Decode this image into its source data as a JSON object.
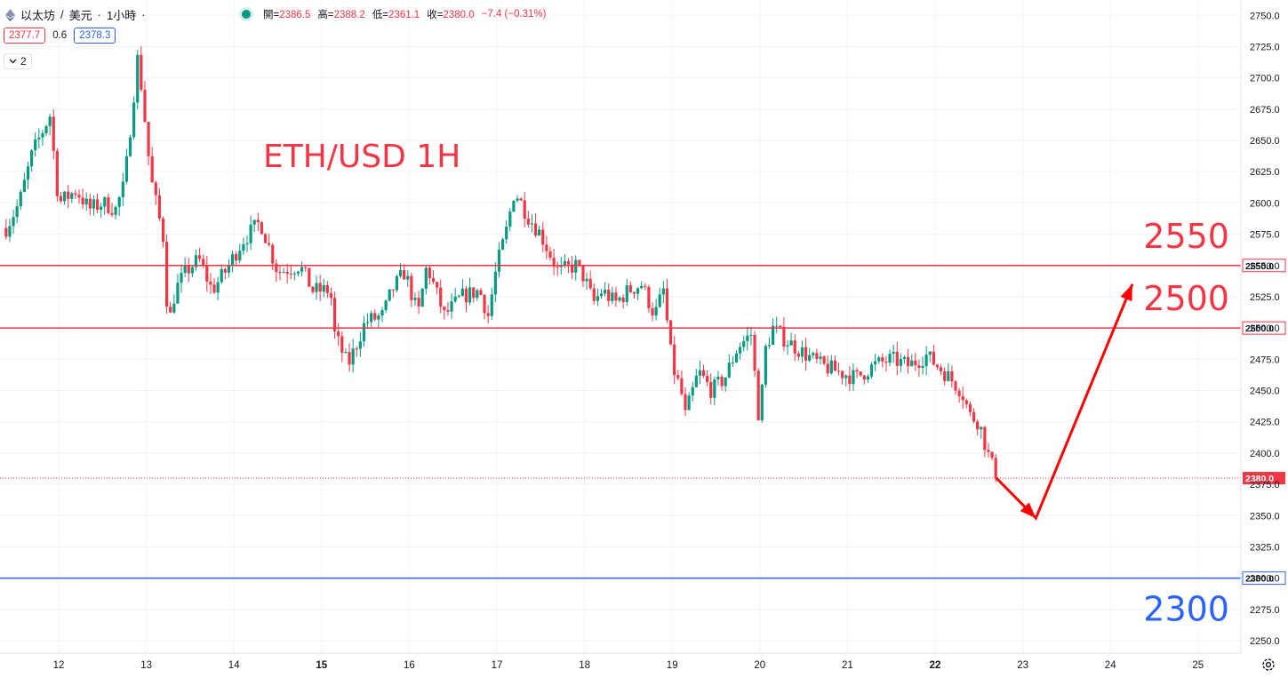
{
  "header": {
    "symbol": "以太坊",
    "separator": "/",
    "quote": "美元",
    "interval": "1小時",
    "dot": "·"
  },
  "ohlc": {
    "open_label": "開=",
    "open": "2386.5",
    "high_label": "高=",
    "high": "2388.2",
    "low_label": "低=",
    "low": "2361.1",
    "close_label": "收=",
    "close": "2380.0",
    "change": "−7.4 (−0.31%)"
  },
  "quote_boxes": {
    "sell": "2377.7",
    "spread": "0.6",
    "buy": "2378.3"
  },
  "indicators_toggle": {
    "count": "2"
  },
  "colors": {
    "up": "#089981",
    "down": "#f23645",
    "grid": "#f0f3fa",
    "resistance": "#f23645",
    "support": "#2962ff",
    "arrow": "#ff0000"
  },
  "chart_data": {
    "type": "candlestick",
    "title": "ETH/USD 1H",
    "x_axis": {
      "ticks": [
        "12",
        "13",
        "14",
        "15",
        "16",
        "17",
        "18",
        "19",
        "20",
        "21",
        "22",
        "23",
        "24",
        "25"
      ],
      "bold": [
        "15",
        "22"
      ]
    },
    "y_axis": {
      "range": [
        2243,
        2760
      ],
      "ticks": [
        "2750.0",
        "2725.0",
        "2700.0",
        "2675.0",
        "2650.0",
        "2625.0",
        "2600.0",
        "2575.0",
        "2550.0",
        "2525.0",
        "2500.0",
        "2475.0",
        "2450.0",
        "2425.0",
        "2400.0",
        "2375.0",
        "2350.0",
        "2325.0",
        "2300.0",
        "2275.0",
        "2250.0"
      ]
    },
    "grid": true,
    "current_price": "2380.0",
    "levels": [
      {
        "value": 2550,
        "label": "2550",
        "tag": "2550.0",
        "kind": "resistance"
      },
      {
        "value": 2500,
        "label": "2500",
        "tag": "2500.0",
        "kind": "resistance"
      },
      {
        "value": 2300,
        "label": "2300",
        "tag": "2300.0",
        "kind": "support"
      }
    ],
    "projection": [
      {
        "day": 22.7,
        "price": 2380
      },
      {
        "day": 23.15,
        "price": 2348
      },
      {
        "day": 24.25,
        "price": 2535
      }
    ],
    "anchors": [
      [
        11.4,
        2580
      ],
      [
        11.55,
        2600
      ],
      [
        11.7,
        2640
      ],
      [
        11.9,
        2670
      ],
      [
        12.0,
        2600
      ],
      [
        12.2,
        2610
      ],
      [
        12.35,
        2595
      ],
      [
        12.5,
        2600
      ],
      [
        12.65,
        2595
      ],
      [
        12.75,
        2615
      ],
      [
        12.9,
        2715
      ],
      [
        12.95,
        2690
      ],
      [
        13.05,
        2620
      ],
      [
        13.2,
        2570
      ],
      [
        13.25,
        2500
      ],
      [
        13.33,
        2530
      ],
      [
        13.45,
        2545
      ],
      [
        13.6,
        2555
      ],
      [
        13.75,
        2530
      ],
      [
        13.9,
        2545
      ],
      [
        14.1,
        2570
      ],
      [
        14.3,
        2585
      ],
      [
        14.5,
        2545
      ],
      [
        14.75,
        2550
      ],
      [
        14.9,
        2530
      ],
      [
        15.1,
        2530
      ],
      [
        15.15,
        2495
      ],
      [
        15.3,
        2470
      ],
      [
        15.5,
        2505
      ],
      [
        15.7,
        2510
      ],
      [
        15.8,
        2530
      ],
      [
        15.95,
        2545
      ],
      [
        16.1,
        2510
      ],
      [
        16.2,
        2550
      ],
      [
        16.3,
        2530
      ],
      [
        16.4,
        2510
      ],
      [
        16.6,
        2525
      ],
      [
        16.8,
        2530
      ],
      [
        16.9,
        2510
      ],
      [
        17.0,
        2550
      ],
      [
        17.1,
        2575
      ],
      [
        17.2,
        2610
      ],
      [
        17.35,
        2590
      ],
      [
        17.5,
        2575
      ],
      [
        17.7,
        2545
      ],
      [
        17.9,
        2550
      ],
      [
        18.0,
        2540
      ],
      [
        18.1,
        2520
      ],
      [
        18.2,
        2530
      ],
      [
        18.35,
        2520
      ],
      [
        18.5,
        2530
      ],
      [
        18.65,
        2535
      ],
      [
        18.8,
        2510
      ],
      [
        18.9,
        2530
      ],
      [
        19.0,
        2470
      ],
      [
        19.1,
        2450
      ],
      [
        19.15,
        2430
      ],
      [
        19.3,
        2465
      ],
      [
        19.45,
        2450
      ],
      [
        19.6,
        2460
      ],
      [
        19.75,
        2485
      ],
      [
        19.9,
        2495
      ],
      [
        20.0,
        2420
      ],
      [
        20.05,
        2480
      ],
      [
        20.15,
        2500
      ],
      [
        20.3,
        2490
      ],
      [
        20.5,
        2480
      ],
      [
        20.7,
        2470
      ],
      [
        20.9,
        2465
      ],
      [
        21.1,
        2460
      ],
      [
        21.3,
        2470
      ],
      [
        21.5,
        2475
      ],
      [
        21.7,
        2470
      ],
      [
        21.9,
        2478
      ],
      [
        22.1,
        2465
      ],
      [
        22.3,
        2450
      ],
      [
        22.4,
        2430
      ],
      [
        22.5,
        2425
      ],
      [
        22.6,
        2400
      ],
      [
        22.65,
        2390
      ],
      [
        22.72,
        2380
      ]
    ]
  }
}
